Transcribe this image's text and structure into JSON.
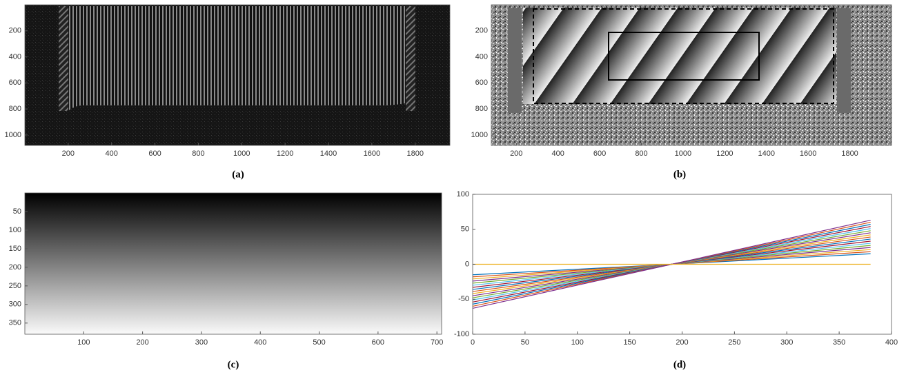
{
  "chart_data": [
    {
      "type": "image",
      "caption": "(a)",
      "xlim": [
        0,
        1960
      ],
      "xticks": [
        200,
        400,
        600,
        800,
        1000,
        1200,
        1400,
        1600,
        1800
      ],
      "ylim": [
        0,
        1080
      ],
      "yticks": [
        200,
        400,
        600,
        800,
        1000
      ]
    },
    {
      "type": "image",
      "caption": "(b)",
      "xlim": [
        80,
        2000
      ],
      "xticks": [
        200,
        400,
        600,
        800,
        1000,
        1200,
        1400,
        1600,
        1800
      ],
      "ylim": [
        0,
        1080
      ],
      "yticks": [
        200,
        400,
        600,
        800,
        1000
      ]
    },
    {
      "type": "image",
      "caption": "(c)",
      "xlim": [
        0,
        708
      ],
      "xticks": [
        100,
        200,
        300,
        400,
        500,
        600,
        700
      ],
      "ylim": [
        0,
        380
      ],
      "yticks": [
        50,
        100,
        150,
        200,
        250,
        300,
        350
      ]
    },
    {
      "type": "line",
      "caption": "(d)",
      "xlim": [
        0,
        400
      ],
      "xticks": [
        0,
        50,
        100,
        150,
        200,
        250,
        300,
        350,
        400
      ],
      "ylim": [
        -100,
        100
      ],
      "yticks": [
        -100,
        -50,
        0,
        50,
        100
      ],
      "x": [
        0,
        190,
        380
      ],
      "series": [
        {
          "color": "#0072BD",
          "values": [
            -15,
            0,
            15
          ]
        },
        {
          "color": "#D95319",
          "values": [
            -18,
            0,
            18
          ]
        },
        {
          "color": "#EDB120",
          "values": [
            -21,
            0,
            21
          ]
        },
        {
          "color": "#7E2F8E",
          "values": [
            -24,
            0,
            24
          ]
        },
        {
          "color": "#77AC30",
          "values": [
            -27,
            0,
            27
          ]
        },
        {
          "color": "#4DBEEE",
          "values": [
            -30,
            0,
            30
          ]
        },
        {
          "color": "#A2142F",
          "values": [
            -33,
            0,
            33
          ]
        },
        {
          "color": "#0072BD",
          "values": [
            -36,
            0,
            36
          ]
        },
        {
          "color": "#D95319",
          "values": [
            -39,
            0,
            39
          ]
        },
        {
          "color": "#EDB120",
          "values": [
            -42,
            0,
            42
          ]
        },
        {
          "color": "#7E2F8E",
          "values": [
            -45,
            0,
            45
          ]
        },
        {
          "color": "#77AC30",
          "values": [
            -48,
            0,
            48
          ]
        },
        {
          "color": "#4DBEEE",
          "values": [
            -51,
            0,
            51
          ]
        },
        {
          "color": "#A2142F",
          "values": [
            -54,
            0,
            54
          ]
        },
        {
          "color": "#0072BD",
          "values": [
            -57,
            0,
            57
          ]
        },
        {
          "color": "#D95319",
          "values": [
            -60,
            0,
            60
          ]
        },
        {
          "color": "#7E2F8E",
          "values": [
            -63,
            0,
            63
          ]
        },
        {
          "color": "#EDB120",
          "values": [
            0,
            0,
            0
          ]
        }
      ]
    }
  ]
}
